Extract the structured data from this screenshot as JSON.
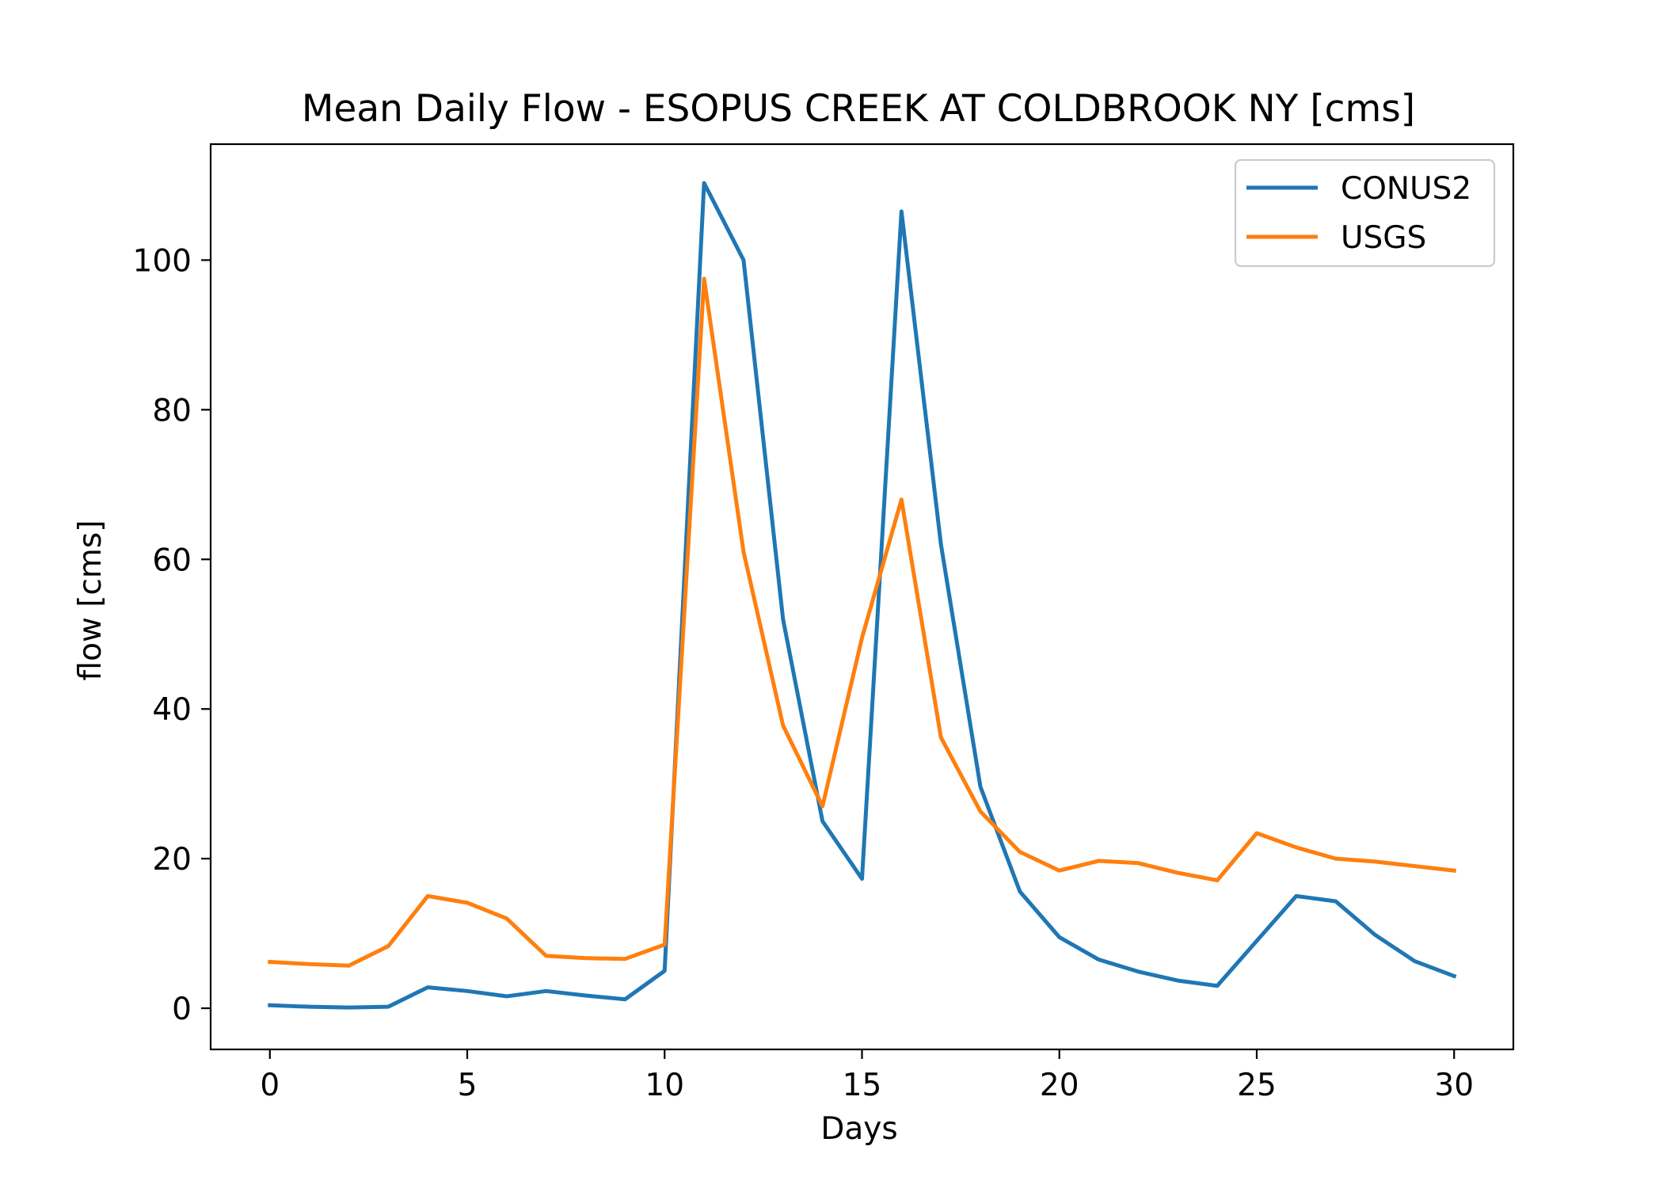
{
  "chart_data": {
    "type": "line",
    "title": "Mean Daily Flow - ESOPUS CREEK AT COLDBROOK NY [cms]",
    "xlabel": "Days",
    "ylabel": "flow [cms]",
    "xlim": [
      -1.5,
      31.5
    ],
    "ylim": [
      -5.5,
      115.5
    ],
    "xticks": [
      0,
      5,
      10,
      15,
      20,
      25,
      30
    ],
    "yticks": [
      0,
      20,
      40,
      60,
      80,
      100
    ],
    "grid": false,
    "legend_position": "top-right",
    "x": [
      0,
      1,
      2,
      3,
      4,
      5,
      6,
      7,
      8,
      9,
      10,
      11,
      12,
      13,
      14,
      15,
      16,
      17,
      18,
      19,
      20,
      21,
      22,
      23,
      24,
      25,
      26,
      27,
      28,
      29,
      30
    ],
    "series": [
      {
        "name": "CONUS2",
        "color": "#1f77b4",
        "values": [
          0.4,
          0.2,
          0.1,
          0.2,
          2.8,
          2.3,
          1.6,
          2.3,
          1.7,
          1.2,
          5.0,
          110.3,
          100.0,
          52.0,
          25.0,
          17.3,
          106.5,
          62.0,
          29.6,
          15.6,
          9.5,
          6.5,
          4.9,
          3.7,
          3.0,
          9.0,
          15.0,
          14.3,
          9.8,
          6.3,
          4.3
        ]
      },
      {
        "name": "USGS",
        "color": "#ff7f0e",
        "values": [
          6.2,
          5.9,
          5.7,
          8.3,
          15.0,
          14.1,
          12.0,
          7.0,
          6.7,
          6.6,
          8.5,
          97.5,
          61.0,
          37.8,
          27.0,
          49.5,
          68.0,
          36.2,
          26.3,
          20.9,
          18.4,
          19.7,
          19.4,
          18.1,
          17.1,
          23.4,
          21.5,
          20.0,
          19.6,
          19.0,
          18.4
        ]
      }
    ]
  }
}
